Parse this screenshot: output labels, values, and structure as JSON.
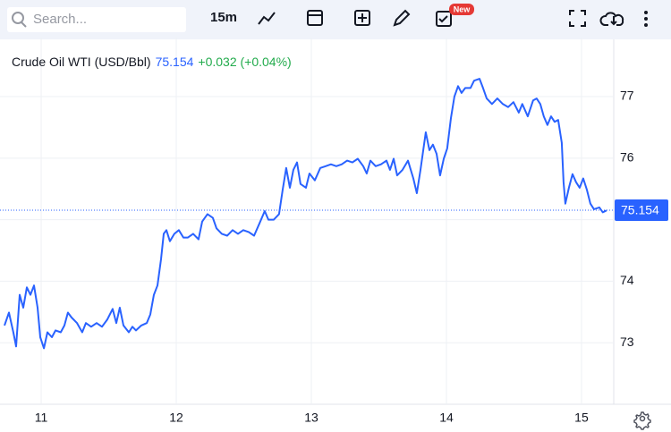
{
  "toolbar": {
    "search_placeholder": "Search...",
    "interval": "15m",
    "badge": "New"
  },
  "chart_data": {
    "type": "line",
    "title": "Crude Oil WTI (USD/Bbl)",
    "last_price": 75.154,
    "change": "+0.032 (+0.04%)",
    "color": "#2962ff",
    "xlim": [
      10.695,
      15.232
    ],
    "xticks": [
      11,
      12,
      13,
      14,
      15
    ],
    "ylim": [
      72,
      77.96
    ],
    "yticks": [
      73,
      74,
      75,
      76,
      77
    ],
    "grid": true,
    "x": [
      10.728,
      10.761,
      10.794,
      10.814,
      10.841,
      10.867,
      10.894,
      10.92,
      10.947,
      10.973,
      10.993,
      11.02,
      11.046,
      11.079,
      11.106,
      11.145,
      11.172,
      11.198,
      11.225,
      11.265,
      11.304,
      11.331,
      11.37,
      11.41,
      11.45,
      11.49,
      11.529,
      11.556,
      11.582,
      11.609,
      11.649,
      11.675,
      11.702,
      11.741,
      11.781,
      11.808,
      11.834,
      11.861,
      11.887,
      11.907,
      11.927,
      11.953,
      11.986,
      12.019,
      12.053,
      12.086,
      12.125,
      12.165,
      12.192,
      12.231,
      12.271,
      12.298,
      12.337,
      12.377,
      12.417,
      12.457,
      12.496,
      12.536,
      12.576,
      12.616,
      12.655,
      12.682,
      12.722,
      12.761,
      12.788,
      12.814,
      12.841,
      12.867,
      12.894,
      12.92,
      12.96,
      12.986,
      13.026,
      13.066,
      13.106,
      13.145,
      13.185,
      13.225,
      13.265,
      13.304,
      13.344,
      13.384,
      13.41,
      13.437,
      13.476,
      13.516,
      13.556,
      13.582,
      13.609,
      13.635,
      13.675,
      13.715,
      13.755,
      13.781,
      13.808,
      13.847,
      13.874,
      13.9,
      13.927,
      13.953,
      13.98,
      14.006,
      14.033,
      14.059,
      14.086,
      14.112,
      14.139,
      14.178,
      14.205,
      14.245,
      14.271,
      14.298,
      14.337,
      14.377,
      14.417,
      14.457,
      14.496,
      14.536,
      14.562,
      14.602,
      14.642,
      14.668,
      14.695,
      14.721,
      14.748,
      14.774,
      14.801,
      14.827,
      14.854,
      14.867,
      14.88,
      14.907,
      14.933,
      14.96,
      14.986,
      15.013,
      15.039,
      15.066,
      15.092,
      15.132,
      15.158,
      15.185
    ],
    "values": [
      73.28,
      73.49,
      73.17,
      72.94,
      73.78,
      73.57,
      73.9,
      73.78,
      73.93,
      73.57,
      73.09,
      72.91,
      73.17,
      73.09,
      73.2,
      73.17,
      73.28,
      73.49,
      73.41,
      73.32,
      73.17,
      73.32,
      73.26,
      73.32,
      73.26,
      73.38,
      73.55,
      73.32,
      73.57,
      73.28,
      73.17,
      73.26,
      73.2,
      73.28,
      73.32,
      73.46,
      73.78,
      73.93,
      74.36,
      74.77,
      74.83,
      74.65,
      74.77,
      74.83,
      74.71,
      74.71,
      74.77,
      74.68,
      74.97,
      75.09,
      75.03,
      74.86,
      74.77,
      74.74,
      74.83,
      74.77,
      74.83,
      74.8,
      74.74,
      74.94,
      75.14,
      75.0,
      75.0,
      75.09,
      75.49,
      75.84,
      75.52,
      75.81,
      75.93,
      75.58,
      75.52,
      75.75,
      75.64,
      75.84,
      75.87,
      75.9,
      75.87,
      75.9,
      75.96,
      75.93,
      75.99,
      75.87,
      75.75,
      75.96,
      75.87,
      75.9,
      75.96,
      75.81,
      75.99,
      75.72,
      75.81,
      75.96,
      75.67,
      75.43,
      75.81,
      76.42,
      76.13,
      76.22,
      76.07,
      75.72,
      75.99,
      76.16,
      76.65,
      77.0,
      77.17,
      77.06,
      77.14,
      77.14,
      77.26,
      77.29,
      77.14,
      76.97,
      76.88,
      76.97,
      76.88,
      76.83,
      76.91,
      76.74,
      76.88,
      76.68,
      76.94,
      76.97,
      76.88,
      76.68,
      76.54,
      76.68,
      76.59,
      76.62,
      76.25,
      75.61,
      75.26,
      75.52,
      75.74,
      75.61,
      75.52,
      75.67,
      75.49,
      75.26,
      75.17,
      75.2,
      75.12,
      75.15
    ]
  }
}
